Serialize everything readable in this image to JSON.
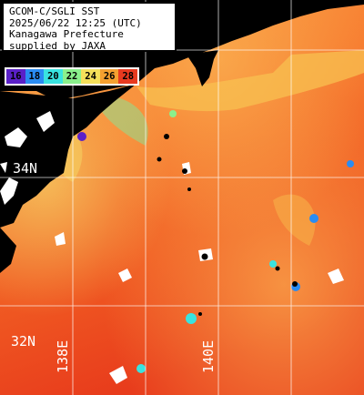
{
  "info": {
    "line1": "GCOM-C/SGLI SST",
    "line2": "2025/06/22 12:25 (UTC)",
    "line3": "Kanagawa Prefecture",
    "line4": "supplied by JAXA"
  },
  "scale": {
    "labels": [
      "16",
      "18",
      "20",
      "22",
      "24",
      "26",
      "28"
    ],
    "colors": [
      "#5a20c8",
      "#2a8cf2",
      "#39e3e0",
      "#8af08c",
      "#f5e05a",
      "#f5a030",
      "#e83a20"
    ]
  },
  "grid": {
    "lat_labels": [
      "34N",
      "32N"
    ],
    "lon_labels": [
      "138E",
      "140E"
    ]
  },
  "colors": {
    "land": "#000000",
    "cloud": "#ffffff",
    "grid": "#ffffff"
  }
}
